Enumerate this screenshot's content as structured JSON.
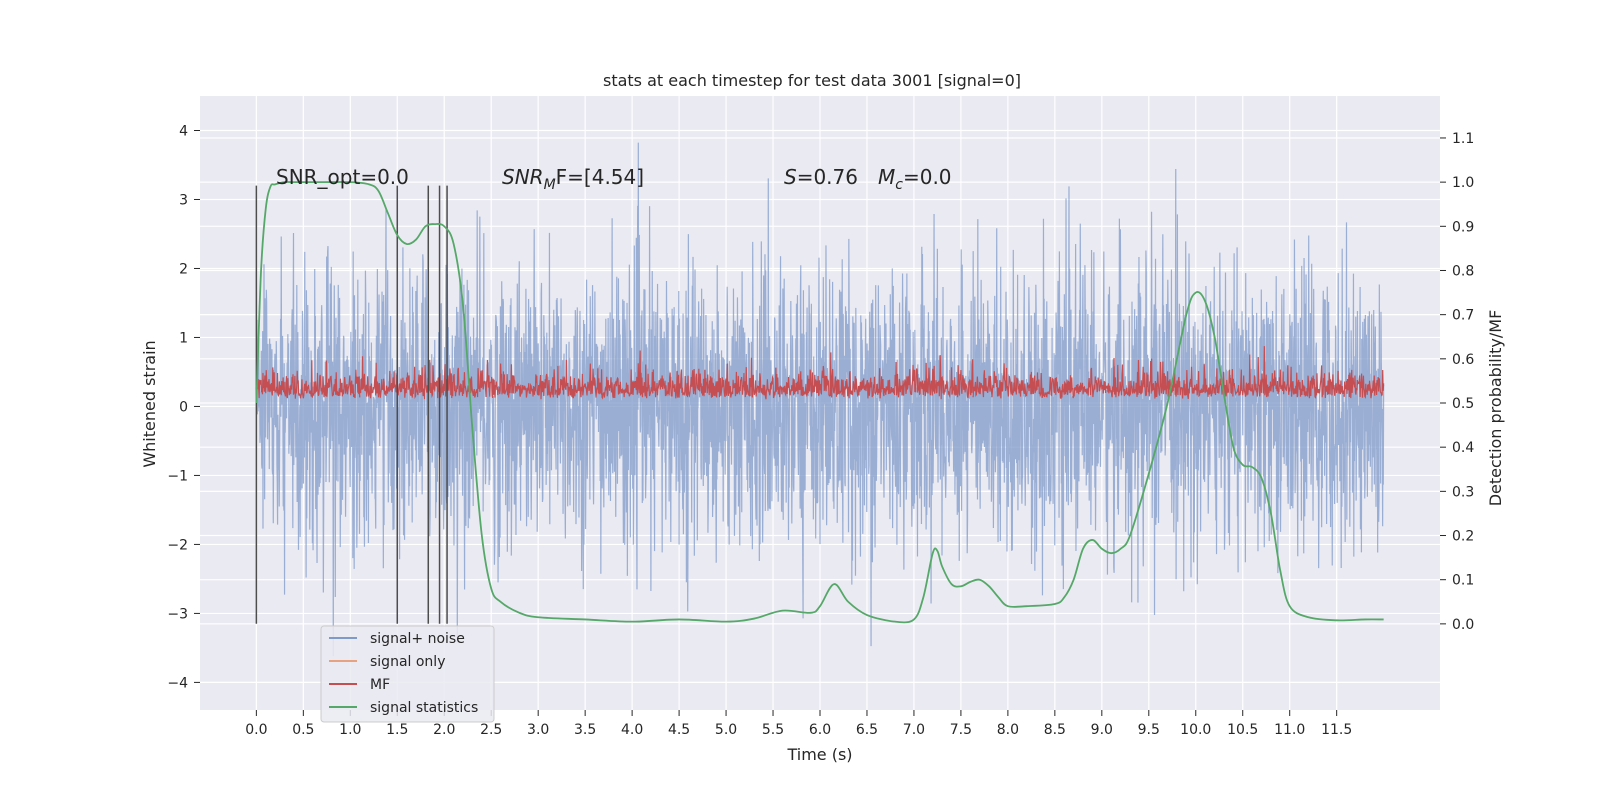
{
  "chart_data": {
    "type": "line",
    "title": "stats at each timestep for test data 3001 [signal=0]",
    "xlabel": "Time (s)",
    "ylabel": "Whitened strain",
    "ylabel_right": "Detection probability/MF",
    "xlim": [
      -0.6,
      12.6
    ],
    "ylim": [
      -4.4,
      4.5
    ],
    "ylim_right": [
      -0.195,
      1.195
    ],
    "x_ticks": [
      0.0,
      0.5,
      1.0,
      1.5,
      2.0,
      2.5,
      3.0,
      3.5,
      4.0,
      4.5,
      5.0,
      5.5,
      6.0,
      6.5,
      7.0,
      7.5,
      8.0,
      8.5,
      9.0,
      9.5,
      10.0,
      10.5,
      11.0,
      11.5
    ],
    "x_tick_labels": [
      "0.0",
      "0.5",
      "1.0",
      "1.5",
      "2.0",
      "2.5",
      "3.0",
      "3.5",
      "4.0",
      "4.5",
      "5.0",
      "5.5",
      "6.0",
      "6.5",
      "7.0",
      "7.5",
      "8.0",
      "8.5",
      "9.0",
      "9.5",
      "10.0",
      "10.5",
      "11.0",
      "11.5"
    ],
    "y_ticks": [
      -4,
      -3,
      -2,
      -1,
      0,
      1,
      2,
      3,
      4
    ],
    "y_tick_labels": [
      "−4",
      "−3",
      "−2",
      "−1",
      "0",
      "1",
      "2",
      "3",
      "4"
    ],
    "y_right_ticks": [
      0.0,
      0.1,
      0.2,
      0.3,
      0.4,
      0.5,
      0.6,
      0.7,
      0.8,
      0.9,
      1.0,
      1.1
    ],
    "y_right_tick_labels": [
      "0.0",
      "0.1",
      "0.2",
      "0.3",
      "0.4",
      "0.5",
      "0.6",
      "0.7",
      "0.8",
      "0.9",
      "1.0",
      "1.1"
    ],
    "grid": true,
    "legend_position": "lower-left",
    "legend": [
      "signal+ noise",
      "signal only",
      "MF",
      "signal statistics"
    ],
    "colors": {
      "signal_noise": "#7f99c9",
      "signal_only": "#e8a281",
      "mf": "#c44e52",
      "signal_statistics": "#55a868",
      "vlines": "#4d4d4d",
      "background": "#eaeaf2"
    },
    "annotations": {
      "snr_opt": "SNR_opt=0.0",
      "snr_mf_prefix": "SNR",
      "snr_mf_sub": "M",
      "snr_mf_suffix": "F=[4.54]",
      "s_label": "S",
      "s_value": "=0.76",
      "mc_label": "M",
      "mc_sub": "c",
      "mc_value": "=0.0"
    },
    "vertical_lines_x": [
      0.0,
      1.5,
      1.83,
      1.95,
      2.03
    ],
    "series": [
      {
        "name": "signal+ noise",
        "axis": "left",
        "x_range": [
          0.0,
          12.0
        ],
        "noise_std": 1.0,
        "typical_peak": 3.5
      },
      {
        "name": "MF",
        "axis": "left",
        "x_range": [
          0.0,
          12.0
        ],
        "baseline": 0.1,
        "typical_top": 0.5
      },
      {
        "name": "signal statistics",
        "axis": "right",
        "x": [
          0.0,
          0.05,
          0.1,
          0.15,
          0.2,
          0.3,
          0.4,
          0.5,
          0.7,
          1.0,
          1.2,
          1.3,
          1.4,
          1.5,
          1.6,
          1.7,
          1.8,
          1.9,
          2.0,
          2.1,
          2.2,
          2.3,
          2.4,
          2.5,
          2.6,
          2.8,
          3.0,
          3.5,
          4.0,
          4.5,
          5.0,
          5.3,
          5.6,
          5.9,
          6.0,
          6.15,
          6.3,
          6.5,
          6.8,
          7.0,
          7.1,
          7.2,
          7.25,
          7.3,
          7.4,
          7.5,
          7.6,
          7.7,
          7.8,
          7.9,
          8.0,
          8.2,
          8.5,
          8.6,
          8.7,
          8.8,
          8.9,
          9.0,
          9.1,
          9.2,
          9.3,
          9.5,
          9.7,
          9.9,
          10.0,
          10.1,
          10.2,
          10.3,
          10.4,
          10.5,
          10.6,
          10.7,
          10.8,
          10.9,
          11.0,
          11.2,
          11.5,
          11.8,
          12.0
        ],
        "y": [
          0.5,
          0.8,
          0.94,
          0.99,
          0.995,
          1.0,
          1.0,
          1.0,
          1.0,
          1.0,
          0.995,
          0.98,
          0.93,
          0.88,
          0.86,
          0.87,
          0.9,
          0.905,
          0.9,
          0.86,
          0.72,
          0.44,
          0.2,
          0.08,
          0.05,
          0.025,
          0.015,
          0.01,
          0.005,
          0.01,
          0.005,
          0.012,
          0.03,
          0.025,
          0.04,
          0.09,
          0.05,
          0.02,
          0.005,
          0.01,
          0.06,
          0.16,
          0.165,
          0.13,
          0.09,
          0.085,
          0.095,
          0.1,
          0.085,
          0.06,
          0.04,
          0.04,
          0.045,
          0.06,
          0.1,
          0.17,
          0.19,
          0.17,
          0.16,
          0.17,
          0.2,
          0.34,
          0.5,
          0.7,
          0.75,
          0.73,
          0.65,
          0.52,
          0.4,
          0.36,
          0.355,
          0.33,
          0.25,
          0.12,
          0.04,
          0.015,
          0.008,
          0.01,
          0.01
        ]
      }
    ]
  }
}
